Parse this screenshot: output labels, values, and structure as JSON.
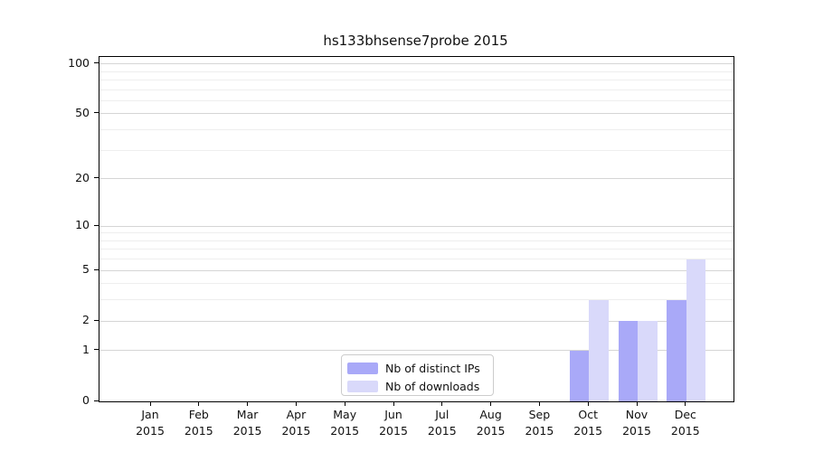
{
  "chart_data": {
    "type": "bar",
    "title": "hs133bhsense7probe 2015",
    "categories": [
      {
        "month": "Jan",
        "year": "2015"
      },
      {
        "month": "Feb",
        "year": "2015"
      },
      {
        "month": "Mar",
        "year": "2015"
      },
      {
        "month": "Apr",
        "year": "2015"
      },
      {
        "month": "May",
        "year": "2015"
      },
      {
        "month": "Jun",
        "year": "2015"
      },
      {
        "month": "Jul",
        "year": "2015"
      },
      {
        "month": "Aug",
        "year": "2015"
      },
      {
        "month": "Sep",
        "year": "2015"
      },
      {
        "month": "Oct",
        "year": "2015"
      },
      {
        "month": "Nov",
        "year": "2015"
      },
      {
        "month": "Dec",
        "year": "2015"
      }
    ],
    "series": [
      {
        "name": "Nb of distinct IPs",
        "color": "#a9a9f8",
        "values": [
          0,
          0,
          0,
          0,
          0,
          0,
          0,
          0,
          0,
          1,
          2,
          3
        ]
      },
      {
        "name": "Nb of downloads",
        "color": "#d9d9fa",
        "values": [
          0,
          0,
          0,
          0,
          0,
          0,
          0,
          0,
          0,
          3,
          2,
          6
        ]
      }
    ],
    "xlabel": "",
    "ylabel": "",
    "yscale": "symlog-log1p",
    "ylim": [
      0,
      110
    ],
    "yticks_major": [
      0,
      1,
      2,
      5,
      10,
      20,
      50,
      100
    ],
    "yticks_minor": [
      3,
      4,
      6,
      7,
      8,
      9,
      30,
      40,
      60,
      70,
      80,
      90
    ],
    "grid": "horizontal",
    "legend_position": "lower-center-inside"
  },
  "colors": {
    "grid_major": "#d5d5d5",
    "grid_minor": "#eeeeee",
    "axis": "#000000",
    "text": "#111111",
    "legend_border": "#cccccc",
    "background": "#ffffff"
  }
}
